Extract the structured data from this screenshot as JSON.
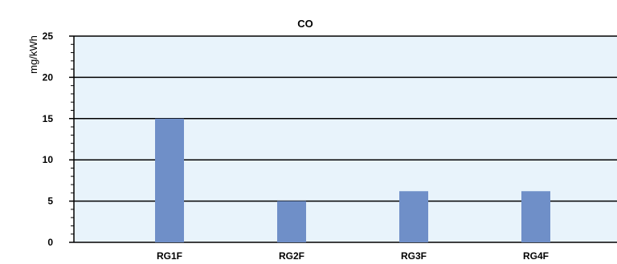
{
  "chart_data": {
    "type": "bar",
    "title": "CO",
    "ylabel": "mg/kWh",
    "xlabel": "",
    "categories": [
      "RG1F",
      "RG2F",
      "RG3F",
      "RG4F"
    ],
    "values": [
      15,
      5,
      6.2,
      6.2
    ],
    "ylim": [
      0,
      25
    ],
    "yticks": [
      "0",
      "5",
      "10",
      "15",
      "20",
      "25"
    ],
    "grid": "horizontal",
    "legend": "none",
    "colors": {
      "bar": "#6f8fc8",
      "plot_background": "#e8f3fb",
      "gridline": "#000000"
    }
  }
}
